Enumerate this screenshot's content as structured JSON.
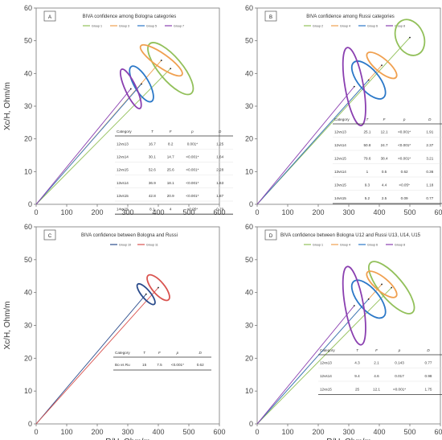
{
  "chart_data": [
    {
      "type": "scatter",
      "panel": "A",
      "title": "BIVA confidence among Bologna categories",
      "xlabel": "",
      "ylabel": "Xc/H, Ohm/m",
      "xlim": [
        0,
        600
      ],
      "ylim": [
        0,
        60
      ],
      "xticks": [
        "0",
        "100",
        "200",
        "300",
        "400",
        "500",
        "600"
      ],
      "yticks": [
        "0",
        "10",
        "20",
        "30",
        "40",
        "50",
        "60"
      ],
      "series": [
        {
          "name": "Group 1",
          "color": "#92c05a",
          "center": [
            440,
            41.5
          ],
          "rx": 38,
          "ry": 4.5,
          "angle": 40
        },
        {
          "name": "Group 3",
          "color": "#f0a050",
          "center": [
            410,
            44
          ],
          "rx": 22,
          "ry": 3.5,
          "angle": 55
        },
        {
          "name": "Group 5",
          "color": "#2b78c8",
          "center": [
            345,
            36.8
          ],
          "rx": 24,
          "ry": 2.8,
          "angle": 30
        },
        {
          "name": "Group 7",
          "color": "#8a3fb0",
          "center": [
            310,
            35.3
          ],
          "rx": 18,
          "ry": 3.0,
          "angle": 25
        }
      ],
      "table": {
        "headers": [
          "Category",
          "T",
          "F",
          "p",
          "D"
        ],
        "rows": [
          [
            "12vs13",
            "16.7",
            "8.2",
            "0.001*",
            "1.25"
          ],
          [
            "12vs14",
            "30.1",
            "14.7",
            "<0.001*",
            "1.64"
          ],
          [
            "12vs15",
            "52.6",
            "25.6",
            "<0.001*",
            "2.28"
          ],
          [
            "13vs14",
            "36.9",
            "18.1",
            "<0.001*",
            "1.63"
          ],
          [
            "13vs15",
            "42.8",
            "20.9",
            "<0.001*",
            "1.87"
          ],
          [
            "14vs15",
            "8.1",
            "4",
            "<0.05*",
            "0.79"
          ]
        ]
      }
    },
    {
      "type": "scatter",
      "panel": "B",
      "title": "BIVA confidence among Russi categories",
      "xlabel": "",
      "ylabel": "",
      "xlim": [
        0,
        600
      ],
      "ylim": [
        0,
        60
      ],
      "xticks": [
        "0",
        "100",
        "200",
        "300",
        "400",
        "500",
        "600"
      ],
      "yticks": [
        "0",
        "10",
        "20",
        "30",
        "40",
        "50",
        "60"
      ],
      "series": [
        {
          "name": "Group 2",
          "color": "#92c05a",
          "center": [
            500,
            51
          ],
          "rx": 45,
          "ry": 2.6,
          "angle": 25
        },
        {
          "name": "Group 4",
          "color": "#f0a050",
          "center": [
            408,
            42.5
          ],
          "rx": 22,
          "ry": 2.6,
          "angle": 50
        },
        {
          "name": "Group 6",
          "color": "#2b78c8",
          "center": [
            365,
            38
          ],
          "rx": 34,
          "ry": 3.2,
          "angle": 40
        },
        {
          "name": "Group 8",
          "color": "#8a3fb0",
          "center": [
            318,
            36
          ],
          "rx": 30,
          "ry": 5.5,
          "angle": 10
        }
      ],
      "table": {
        "headers": [
          "Category",
          "T",
          "F",
          "p",
          "D"
        ],
        "rows": [
          [
            "12vs13",
            "25.1",
            "12.1",
            "<0.001*",
            "1.91"
          ],
          [
            "12vs14",
            "50.8",
            "24.7",
            "<0.001*",
            "2.37"
          ],
          [
            "12vs15",
            "79.6",
            "38.4",
            "<0.001*",
            "3.21"
          ],
          [
            "13vs14",
            "1",
            "0.5",
            "0.62",
            "0.36"
          ],
          [
            "13vs15",
            "9.3",
            "4.4",
            "<0.05*",
            "1.18"
          ],
          [
            "14vs15",
            "5.2",
            "2.5",
            "0.09",
            "0.77"
          ]
        ]
      }
    },
    {
      "type": "scatter",
      "panel": "C",
      "title": "BIVA confidence between Bologna and Russi",
      "xlabel": "R/H, Ohm/m",
      "ylabel": "Xc/H, Ohm/m",
      "xlim": [
        0,
        600
      ],
      "ylim": [
        0,
        60
      ],
      "xticks": [
        "0",
        "100",
        "200",
        "300",
        "400",
        "500",
        "600"
      ],
      "yticks": [
        "0",
        "10",
        "20",
        "30",
        "40",
        "50",
        "60"
      ],
      "series": [
        {
          "name": "Group 10",
          "color": "#2b4c8c",
          "center": [
            360,
            39.5
          ],
          "rx": 14,
          "ry": 1.8,
          "angle": 40
        },
        {
          "name": "Group 11",
          "color": "#d9534f",
          "center": [
            400,
            41.5
          ],
          "rx": 20,
          "ry": 2.2,
          "angle": 40
        }
      ],
      "table": {
        "headers": [
          "Category",
          "T",
          "F",
          "p",
          "D"
        ],
        "rows": [
          [
            "Bo vs Ru",
            "15",
            "7.5",
            "<0.001*",
            "0.62"
          ]
        ]
      }
    },
    {
      "type": "scatter",
      "panel": "D",
      "title": "BIVA confidence between  Bologna U12 and Russi U13, U14, U15",
      "xlabel": "R/H, Ohm/m",
      "ylabel": "",
      "xlim": [
        0,
        600
      ],
      "ylim": [
        0,
        60
      ],
      "xticks": [
        "0",
        "100",
        "200",
        "300",
        "400",
        "500",
        "600"
      ],
      "yticks": [
        "0",
        "10",
        "20",
        "30",
        "40",
        "50",
        "60"
      ],
      "series": [
        {
          "name": "Group 1",
          "color": "#92c05a",
          "center": [
            440,
            41.5
          ],
          "rx": 38,
          "ry": 4.5,
          "angle": 40
        },
        {
          "name": "Group 4",
          "color": "#f0a050",
          "center": [
            408,
            42.5
          ],
          "rx": 22,
          "ry": 2.6,
          "angle": 50
        },
        {
          "name": "Group 6",
          "color": "#2b78c8",
          "center": [
            365,
            38
          ],
          "rx": 34,
          "ry": 3.2,
          "angle": 40
        },
        {
          "name": "Group 8",
          "color": "#8a3fb0",
          "center": [
            318,
            36
          ],
          "rx": 30,
          "ry": 5.5,
          "angle": 10
        }
      ],
      "table": {
        "headers": [
          "Category",
          "T",
          "F",
          "p",
          "D"
        ],
        "rows": [
          [
            "12vs13",
            "4.3",
            "2.1",
            "0.143",
            "0.77"
          ],
          [
            "12vs14",
            "9.4",
            "4.6",
            "0.017",
            "0.98"
          ],
          [
            "12vs15",
            "25",
            "12.1",
            "<0.001*",
            "1.75"
          ]
        ]
      }
    }
  ]
}
